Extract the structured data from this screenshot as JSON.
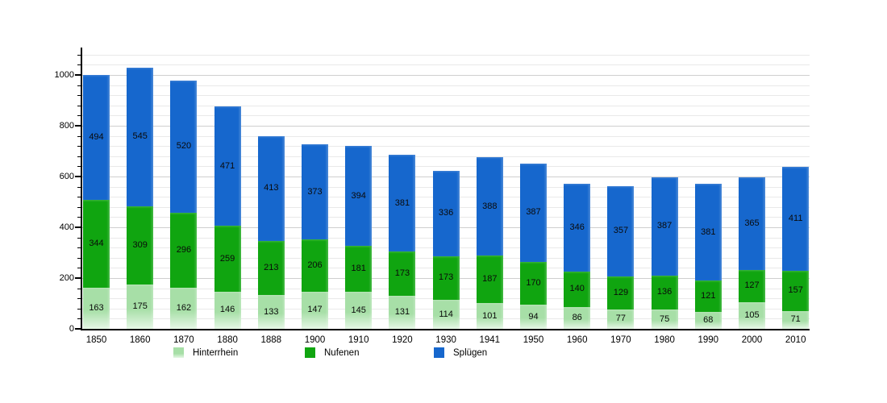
{
  "chart_data": {
    "type": "bar",
    "stacked": true,
    "title": "",
    "xlabel": "",
    "ylabel": "",
    "categories": [
      "1850",
      "1860",
      "1870",
      "1880",
      "1888",
      "1900",
      "1910",
      "1920",
      "1930",
      "1941",
      "1950",
      "1960",
      "1970",
      "1980",
      "1990",
      "2000",
      "2010"
    ],
    "series": [
      {
        "name": "Hinterrhein",
        "color": "#a7dfa7",
        "color_fade_bottom": "#e6f7e6",
        "values": [
          163,
          175,
          162,
          146,
          133,
          147,
          145,
          131,
          114,
          101,
          94,
          86,
          77,
          75,
          68,
          105,
          71
        ]
      },
      {
        "name": "Nufenen",
        "color": "#10a510",
        "values": [
          344,
          309,
          296,
          259,
          213,
          206,
          181,
          173,
          173,
          187,
          170,
          140,
          129,
          136,
          121,
          127,
          157
        ]
      },
      {
        "name": "Splügen",
        "color": "#1667cd",
        "values": [
          494,
          545,
          520,
          471,
          413,
          373,
          394,
          381,
          336,
          388,
          387,
          346,
          357,
          387,
          381,
          365,
          411
        ]
      }
    ],
    "yticks": [
      0,
      200,
      400,
      600,
      800,
      1000
    ],
    "minor_grid_step": 40,
    "ylim": [
      0,
      1103
    ],
    "grid": true,
    "legend_position": "bottom"
  },
  "style": {
    "grid_minor_color": "#e9e9e9",
    "grid_major_color": "#cfcfcf",
    "axis_color": "#000000",
    "value_label_color": "#0a0a0a"
  }
}
